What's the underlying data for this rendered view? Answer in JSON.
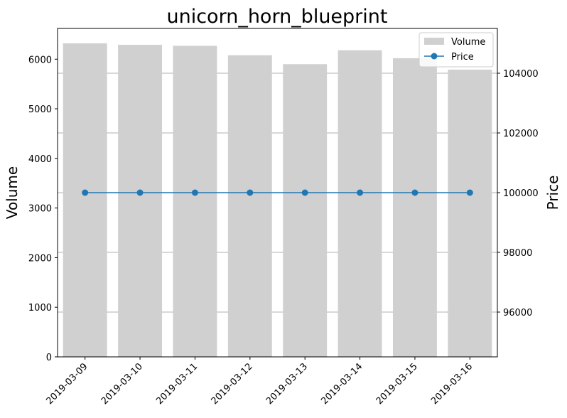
{
  "chart_data": {
    "type": "bar",
    "title": "unicorn_horn_blueprint",
    "categories": [
      "2019-03-09",
      "2019-03-10",
      "2019-03-11",
      "2019-03-12",
      "2019-03-13",
      "2019-03-14",
      "2019-03-15",
      "2019-03-16"
    ],
    "series": [
      {
        "name": "Volume",
        "type": "bar",
        "axis": "left",
        "color": "#d0d0d0",
        "values": [
          6320,
          6290,
          6270,
          6080,
          5900,
          6180,
          6020,
          5790
        ]
      },
      {
        "name": "Price",
        "type": "line",
        "axis": "right",
        "color": "#1f77b4",
        "marker": "circle",
        "values": [
          100000,
          100000,
          100000,
          100000,
          100000,
          100000,
          100000,
          100000
        ]
      }
    ],
    "ylabel_left": "Volume",
    "ylabel_right": "Price",
    "xlabel": "",
    "ylim_left": [
      0,
      6620
    ],
    "yticks_left": [
      0,
      1000,
      2000,
      3000,
      4000,
      5000,
      6000
    ],
    "ylim_right": [
      94500,
      105500
    ],
    "yticks_right": [
      96000,
      98000,
      100000,
      102000,
      104000
    ],
    "grid": "horizontal lines at right-axis ticks",
    "legend": {
      "placement": "top-right",
      "entries": [
        {
          "label": "Volume",
          "kind": "bar",
          "color": "#d0d0d0"
        },
        {
          "label": "Price",
          "kind": "line",
          "color": "#1f77b4"
        }
      ]
    }
  }
}
